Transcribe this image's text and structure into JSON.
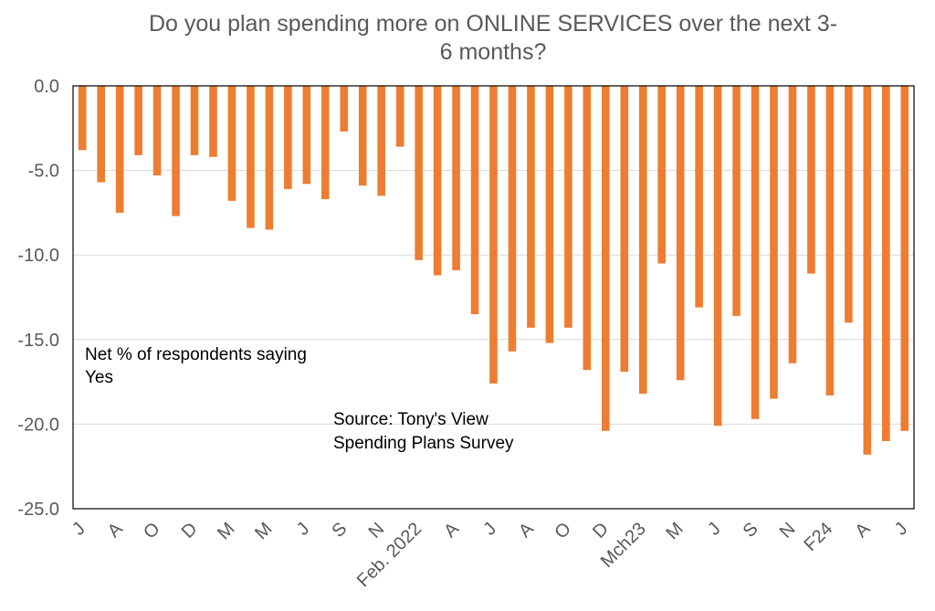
{
  "chart_data": {
    "type": "bar",
    "title_lines": [
      "Do you plan spending more on ONLINE SERVICES over the next 3-",
      "6 months?"
    ],
    "xlabel": "",
    "ylabel": "",
    "ylim": [
      -25,
      0
    ],
    "yticks": [
      "0.0",
      "-5.0",
      "-10.0",
      "-15.0",
      "-20.0",
      "-25.0"
    ],
    "ytick_values": [
      0,
      -5,
      -10,
      -15,
      -20,
      -25
    ],
    "grid": true,
    "bar_color": "#ed7d31",
    "values": [
      -3.8,
      -5.7,
      -7.5,
      -4.1,
      -5.3,
      -7.7,
      -4.1,
      -4.2,
      -6.8,
      -8.4,
      -8.5,
      -6.1,
      -5.8,
      -6.7,
      -2.7,
      -5.9,
      -6.5,
      -3.6,
      -10.3,
      -11.2,
      -10.9,
      -13.5,
      -17.6,
      -15.7,
      -14.3,
      -15.2,
      -14.3,
      -16.8,
      -20.4,
      -16.9,
      -18.2,
      -10.5,
      -17.4,
      -13.1,
      -20.1,
      -13.6,
      -19.7,
      -18.5,
      -16.4,
      -11.1,
      -18.3,
      -14.0,
      -21.8,
      -21.0,
      -20.4
    ],
    "x_tick_labels": [
      {
        "index": 0,
        "label": "J"
      },
      {
        "index": 2,
        "label": "A"
      },
      {
        "index": 4,
        "label": "O"
      },
      {
        "index": 6,
        "label": "D"
      },
      {
        "index": 8,
        "label": "M"
      },
      {
        "index": 10,
        "label": "M"
      },
      {
        "index": 12,
        "label": "J"
      },
      {
        "index": 14,
        "label": "S"
      },
      {
        "index": 16,
        "label": "N"
      },
      {
        "index": 18,
        "label": "Feb. 2022"
      },
      {
        "index": 20,
        "label": "A"
      },
      {
        "index": 22,
        "label": "J"
      },
      {
        "index": 24,
        "label": "A"
      },
      {
        "index": 26,
        "label": "O"
      },
      {
        "index": 28,
        "label": "D"
      },
      {
        "index": 30,
        "label": "Mch23"
      },
      {
        "index": 32,
        "label": "M"
      },
      {
        "index": 34,
        "label": "J"
      },
      {
        "index": 36,
        "label": "S"
      },
      {
        "index": 38,
        "label": "N"
      },
      {
        "index": 40,
        "label": "F24"
      },
      {
        "index": 42,
        "label": "A"
      },
      {
        "index": 44,
        "label": "J"
      }
    ],
    "annotations": {
      "legend_note": [
        "Net % of respondents saying",
        "Yes"
      ],
      "source_note": [
        "Source: Tony's View",
        "Spending Plans Survey"
      ]
    }
  }
}
